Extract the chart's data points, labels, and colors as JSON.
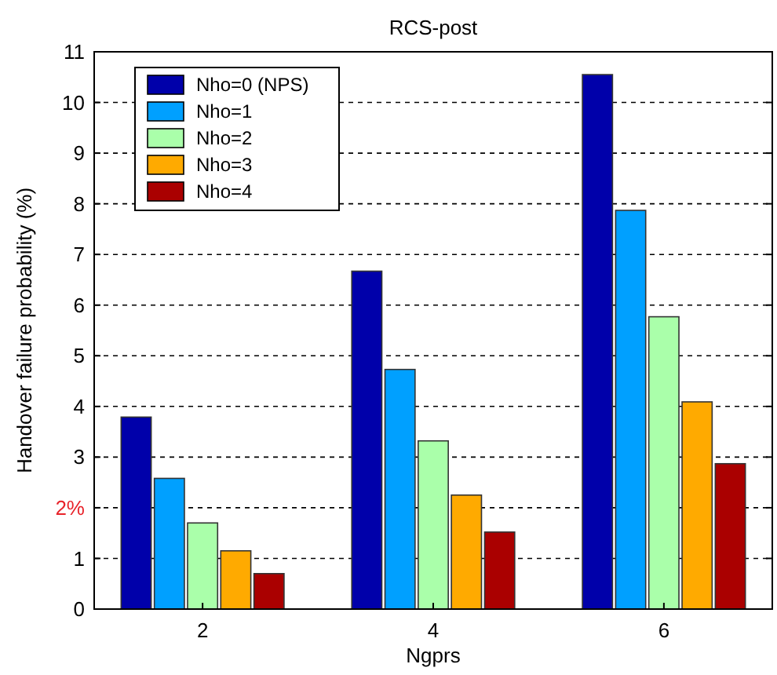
{
  "chart_data": {
    "type": "bar",
    "title": "RCS-post",
    "xlabel": "Ngprs",
    "ylabel": "Handover failure probability (%)",
    "categories": [
      "2",
      "4",
      "6"
    ],
    "series": [
      {
        "name": "Nho=0 (NPS)",
        "color": "#0000aa",
        "values": [
          3.79,
          6.67,
          10.55
        ]
      },
      {
        "name": "Nho=1",
        "color": "#00a0ff",
        "values": [
          2.58,
          4.73,
          7.87
        ]
      },
      {
        "name": "Nho=2",
        "color": "#aaffaa",
        "values": [
          1.7,
          3.32,
          5.77
        ]
      },
      {
        "name": "Nho=3",
        "color": "#ffaa00",
        "values": [
          1.15,
          2.25,
          4.09
        ]
      },
      {
        "name": "Nho=4",
        "color": "#aa0000",
        "values": [
          0.7,
          1.52,
          2.87
        ]
      }
    ],
    "ylim": [
      0,
      11
    ],
    "yticks": [
      0,
      1,
      {
        "value": 2,
        "label": "2%"
      },
      3,
      4,
      5,
      6,
      7,
      8,
      9,
      10,
      11
    ],
    "grid": "y",
    "line_style": "dashed",
    "legend": "top left"
  }
}
